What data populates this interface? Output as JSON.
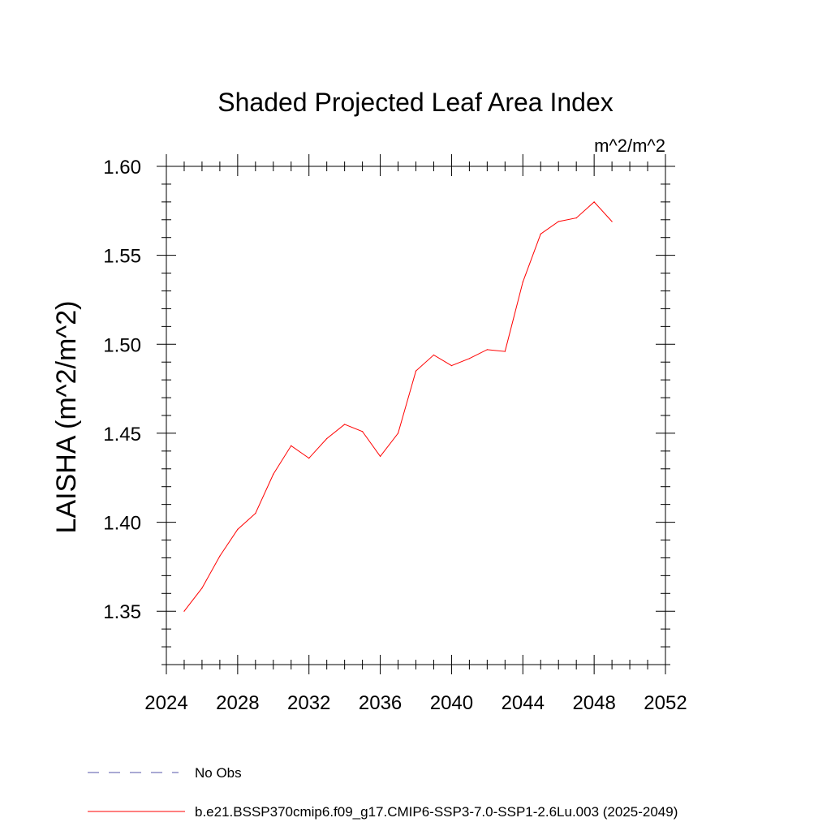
{
  "chart_data": {
    "type": "line",
    "title": "Shaded Projected Leaf Area Index",
    "units": "m^2/m^2",
    "ylabel": "LAISHA  (m^2/m^2)",
    "xlabel": "",
    "xlim": [
      2024,
      2052
    ],
    "ylim": [
      1.32,
      1.6
    ],
    "x_ticks": [
      "2024",
      "2028",
      "2032",
      "2036",
      "2040",
      "2044",
      "2048",
      "2052"
    ],
    "y_ticks": [
      "1.35",
      "1.40",
      "1.45",
      "1.50",
      "1.55",
      "1.60"
    ],
    "grid": false,
    "legend_position": "bottom-left",
    "series": [
      {
        "name": "b.e21.BSSP370cmip6.f09_g17.CMIP6-SSP3-7.0-SSP1-2.6Lu.003 (2025-2049)",
        "color": "#ff0000",
        "style": "solid",
        "x": [
          2025,
          2026,
          2027,
          2028,
          2029,
          2030,
          2031,
          2032,
          2033,
          2034,
          2035,
          2036,
          2037,
          2038,
          2039,
          2040,
          2041,
          2042,
          2043,
          2044,
          2045,
          2046,
          2047,
          2048,
          2049
        ],
        "y": [
          1.35,
          1.363,
          1.381,
          1.396,
          1.405,
          1.427,
          1.443,
          1.436,
          1.447,
          1.455,
          1.451,
          1.437,
          1.45,
          1.485,
          1.494,
          1.488,
          1.492,
          1.497,
          1.496,
          1.535,
          1.562,
          1.569,
          1.571,
          1.58,
          1.569
        ]
      }
    ],
    "legend": [
      {
        "label": "No Obs",
        "color": "#5555aa",
        "style": "dashed"
      },
      {
        "label": "b.e21.BSSP370cmip6.f09_g17.CMIP6-SSP3-7.0-SSP1-2.6Lu.003 (2025-2049)",
        "color": "#ff0000",
        "style": "solid"
      }
    ]
  }
}
